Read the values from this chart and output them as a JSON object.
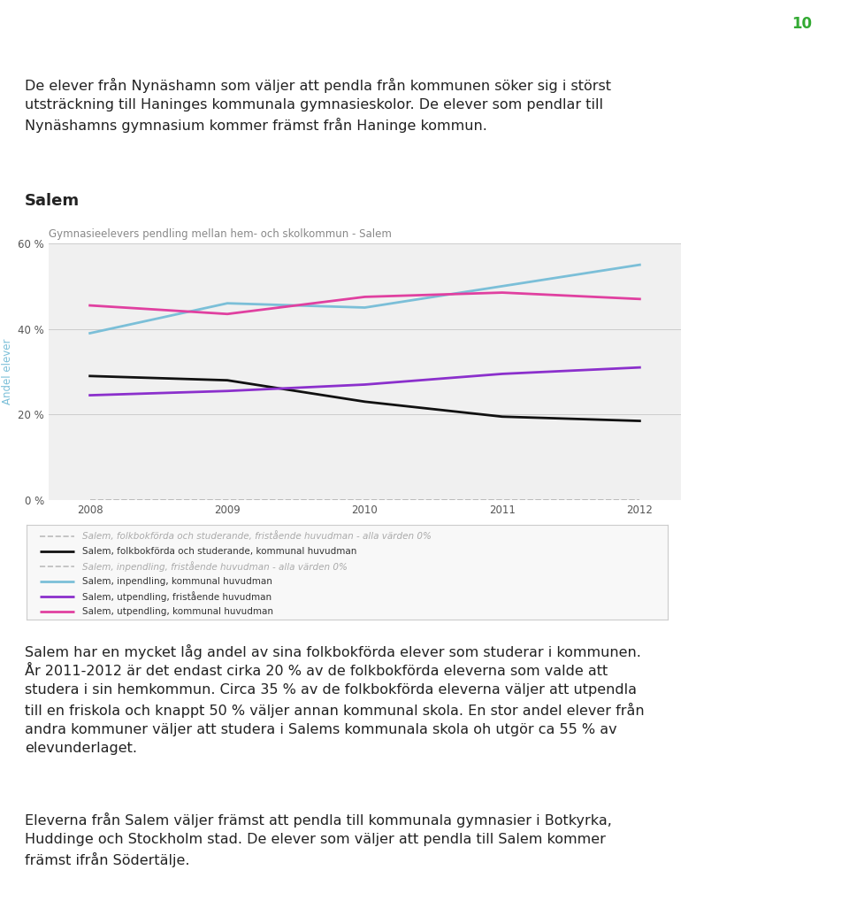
{
  "title": "Gymnasieelevers pendling mellan hem- och skolkommun - Salem",
  "ylabel": "Andel elever",
  "years": [
    2008,
    2009,
    2010,
    2011,
    2012
  ],
  "series": [
    {
      "label": "Salem, folkbokförda och studerande, fristående huvudman - alla värden 0%",
      "values": [
        0,
        0,
        0,
        0,
        0
      ],
      "color": "#bbbbbb",
      "linewidth": 1.2,
      "linestyle": "--",
      "greyed": true
    },
    {
      "label": "Salem, folkbokförda och studerande, kommunal huvudman",
      "values": [
        29,
        28,
        23,
        19.5,
        18.5
      ],
      "color": "#111111",
      "linewidth": 2.0,
      "linestyle": "-",
      "greyed": false
    },
    {
      "label": "Salem, inpendling, fristående huvudman - alla värden 0%",
      "values": [
        0,
        0,
        0,
        0,
        0
      ],
      "color": "#bbbbbb",
      "linewidth": 1.2,
      "linestyle": "--",
      "greyed": true
    },
    {
      "label": "Salem, inpendling, kommunal huvudman",
      "values": [
        39,
        46,
        45,
        50,
        55
      ],
      "color": "#7bbfd8",
      "linewidth": 2.0,
      "linestyle": "-",
      "greyed": false
    },
    {
      "label": "Salem, utpendling, fristående huvudman",
      "values": [
        24.5,
        25.5,
        27,
        29.5,
        31
      ],
      "color": "#8b30cc",
      "linewidth": 2.0,
      "linestyle": "-",
      "greyed": false
    },
    {
      "label": "Salem, utpendling, kommunal huvudman",
      "values": [
        45.5,
        43.5,
        47.5,
        48.5,
        47
      ],
      "color": "#e040a0",
      "linewidth": 2.0,
      "linestyle": "-",
      "greyed": false
    }
  ],
  "ylim": [
    0,
    60
  ],
  "yticks": [
    0,
    20,
    40,
    60
  ],
  "ytick_labels": [
    "0 %",
    "20 %",
    "40 %",
    "60 %"
  ],
  "background_color": "#ffffff",
  "plot_bg_color": "#f0f0f0",
  "title_color": "#888888",
  "ylabel_color": "#7bbfd8",
  "page_number": "10",
  "top_text": "De elever från Nynäshamn som väljer att pendla från kommunen söker sig i störst\nutsträckning till Haninges kommunala gymnasieskolor. De elever som pendlar till\nNynäshamns gymnasium kommer främst från Haninge kommun.",
  "section_heading": "Salem",
  "bottom_text1": "Salem har en mycket låg andel av sina folkbokförda elever som studerar i kommunen.\nÅr 2011-2012 är det endast cirka 20 % av de folkbokförda eleverna som valde att\nstudera i sin hemkommun. Circa 35 % av de folkbokförda eleverna väljer att utpendla\ntill en friskola och knappt 50 % väljer annan kommunal skola. En stor andel elever från\nandra kommuner väljer att studera i Salems kommunala skola oh utgör ca 55 % av\nelevunderlaget.",
  "bottom_text2": "Eleverna från Salem väljer främst att pendla till kommunala gymnasier i Botkyrka,\nHuddinge och Stockholm stad. De elever som väljer att pendla till Salem kommer\nfrämst ifrån Södertälje."
}
